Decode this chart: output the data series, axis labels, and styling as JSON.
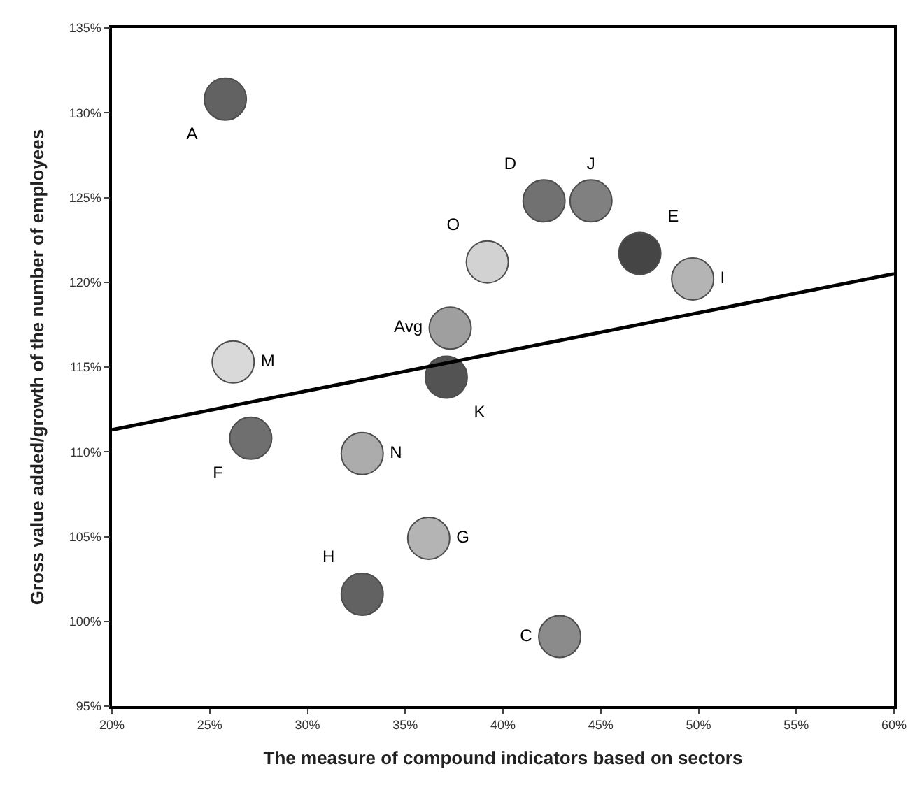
{
  "chart_data": {
    "type": "scatter",
    "xlabel": "The measure of compound indicators based on sectors",
    "ylabel": "Gross value added/growth of the number of employees",
    "xlim": [
      20,
      60
    ],
    "xticks": [
      {
        "value": 20,
        "label": "20%"
      },
      {
        "value": 25,
        "label": "25%"
      },
      {
        "value": 30,
        "label": "30%"
      },
      {
        "value": 35,
        "label": "35%"
      },
      {
        "value": 40,
        "label": "40%"
      },
      {
        "value": 45,
        "label": "45%"
      },
      {
        "value": 50,
        "label": "50%"
      },
      {
        "value": 55,
        "label": "55%"
      },
      {
        "value": 60,
        "label": "60%"
      }
    ],
    "ylim": [
      95,
      135
    ],
    "yticks": [
      {
        "value": 95,
        "label": "95%"
      },
      {
        "value": 100,
        "label": "100%"
      },
      {
        "value": 105,
        "label": "105%"
      },
      {
        "value": 110,
        "label": "110%"
      },
      {
        "value": 115,
        "label": "115%"
      },
      {
        "value": 120,
        "label": "120%"
      },
      {
        "value": 125,
        "label": "125%"
      },
      {
        "value": 130,
        "label": "130%"
      },
      {
        "value": 135,
        "label": "135%"
      }
    ],
    "grid": false,
    "legend": false,
    "marker": "circle",
    "series": [
      {
        "name": "A",
        "color": "#5a5a5a",
        "x": [
          25.8
        ],
        "values": [
          130.8
        ]
      },
      {
        "name": "D",
        "color": "#6a6a6a",
        "x": [
          42.1
        ],
        "values": [
          124.8
        ]
      },
      {
        "name": "J",
        "color": "#7a7a7a",
        "x": [
          44.5
        ],
        "values": [
          124.8
        ]
      },
      {
        "name": "E",
        "color": "#3c3c3c",
        "x": [
          47.0
        ],
        "values": [
          121.7
        ]
      },
      {
        "name": "O",
        "color": "#d0d0d0",
        "x": [
          39.2
        ],
        "values": [
          121.2
        ]
      },
      {
        "name": "I",
        "color": "#b0b0b0",
        "x": [
          49.7
        ],
        "values": [
          120.2
        ]
      },
      {
        "name": "Avg",
        "color": "#9a9a9a",
        "x": [
          37.3
        ],
        "values": [
          117.3
        ]
      },
      {
        "name": "M",
        "color": "#d8d8d8",
        "x": [
          26.2
        ],
        "values": [
          115.3
        ]
      },
      {
        "name": "K",
        "color": "#4a4a4a",
        "x": [
          37.1
        ],
        "values": [
          114.4
        ]
      },
      {
        "name": "F",
        "color": "#686868",
        "x": [
          27.1
        ],
        "values": [
          110.8
        ]
      },
      {
        "name": "N",
        "color": "#a8a8a8",
        "x": [
          32.8
        ],
        "values": [
          109.9
        ]
      },
      {
        "name": "G",
        "color": "#b0b0b0",
        "x": [
          36.2
        ],
        "values": [
          104.9
        ]
      },
      {
        "name": "H",
        "color": "#5a5a5a",
        "x": [
          32.8
        ],
        "values": [
          101.6
        ]
      },
      {
        "name": "C",
        "color": "#858585",
        "x": [
          42.9
        ],
        "values": [
          99.1
        ]
      },
      {
        "type": "line",
        "color": "#000000",
        "x": [
          20,
          60
        ],
        "values": [
          111.3,
          120.5
        ],
        "marker": "none",
        "line_style": "solid"
      }
    ]
  }
}
